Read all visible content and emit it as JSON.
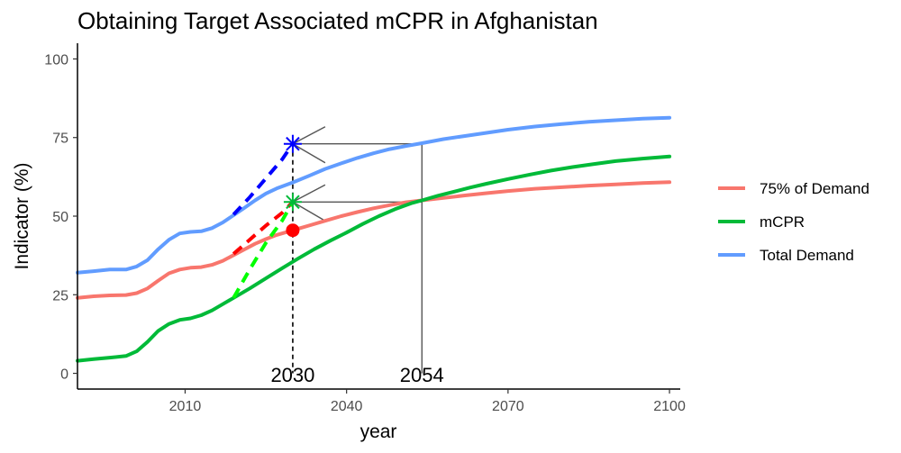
{
  "chart_data": {
    "type": "line",
    "title": "Obtaining Target Associated mCPR in Afghanistan",
    "xlabel": "year",
    "ylabel": "Indicator (%)",
    "xlim": [
      1990,
      2102
    ],
    "ylim": [
      -5,
      105
    ],
    "xticks": [
      2010,
      2040,
      2070,
      2100
    ],
    "yticks": [
      0,
      25,
      50,
      75,
      100
    ],
    "grid": false,
    "legend_position": "right",
    "series": [
      {
        "name": "75% of Demand",
        "color": "#F8766D",
        "points": [
          [
            1990,
            24
          ],
          [
            1993,
            24.5
          ],
          [
            1996,
            24.8
          ],
          [
            1999,
            24.9
          ],
          [
            2001,
            25.5
          ],
          [
            2003,
            27
          ],
          [
            2005,
            29.5
          ],
          [
            2007,
            31.8
          ],
          [
            2009,
            33
          ],
          [
            2011,
            33.6
          ],
          [
            2013,
            33.8
          ],
          [
            2015,
            34.5
          ],
          [
            2017,
            35.8
          ],
          [
            2019,
            37.6
          ],
          [
            2021,
            39.4
          ],
          [
            2023,
            41.2
          ],
          [
            2025,
            42.7
          ],
          [
            2027,
            44
          ],
          [
            2030,
            45.5
          ],
          [
            2033,
            47
          ],
          [
            2036,
            48.5
          ],
          [
            2039,
            50
          ],
          [
            2042,
            51.3
          ],
          [
            2045,
            52.5
          ],
          [
            2048,
            53.5
          ],
          [
            2051,
            54.4
          ],
          [
            2054,
            55
          ],
          [
            2058,
            55.8
          ],
          [
            2062,
            56.6
          ],
          [
            2066,
            57.3
          ],
          [
            2070,
            58
          ],
          [
            2075,
            58.7
          ],
          [
            2080,
            59.2
          ],
          [
            2085,
            59.7
          ],
          [
            2090,
            60.1
          ],
          [
            2095,
            60.5
          ],
          [
            2100,
            60.8
          ]
        ]
      },
      {
        "name": "mCPR",
        "color": "#00BA38",
        "points": [
          [
            1990,
            4
          ],
          [
            1993,
            4.5
          ],
          [
            1996,
            5
          ],
          [
            1999,
            5.5
          ],
          [
            2001,
            7
          ],
          [
            2003,
            10
          ],
          [
            2005,
            13.5
          ],
          [
            2007,
            15.7
          ],
          [
            2009,
            17
          ],
          [
            2011,
            17.5
          ],
          [
            2013,
            18.5
          ],
          [
            2015,
            20
          ],
          [
            2017,
            22
          ],
          [
            2019,
            24
          ],
          [
            2022,
            27
          ],
          [
            2025,
            30.2
          ],
          [
            2028,
            33.4
          ],
          [
            2031,
            36.5
          ],
          [
            2034,
            39.5
          ],
          [
            2037,
            42.2
          ],
          [
            2040,
            44.8
          ],
          [
            2043,
            47.5
          ],
          [
            2046,
            50
          ],
          [
            2049,
            52.2
          ],
          [
            2052,
            54.1
          ],
          [
            2054,
            55
          ],
          [
            2057,
            56.5
          ],
          [
            2060,
            57.8
          ],
          [
            2063,
            59.1
          ],
          [
            2066,
            60.3
          ],
          [
            2070,
            61.8
          ],
          [
            2074,
            63.2
          ],
          [
            2078,
            64.5
          ],
          [
            2082,
            65.6
          ],
          [
            2086,
            66.6
          ],
          [
            2090,
            67.5
          ],
          [
            2095,
            68.3
          ],
          [
            2100,
            69
          ]
        ]
      },
      {
        "name": "Total Demand",
        "color": "#619CFF",
        "points": [
          [
            1990,
            32
          ],
          [
            1993,
            32.5
          ],
          [
            1996,
            33
          ],
          [
            1999,
            33
          ],
          [
            2001,
            34
          ],
          [
            2003,
            36
          ],
          [
            2005,
            39.5
          ],
          [
            2007,
            42.5
          ],
          [
            2009,
            44.5
          ],
          [
            2011,
            45
          ],
          [
            2013,
            45.2
          ],
          [
            2015,
            46.2
          ],
          [
            2017,
            48
          ],
          [
            2019,
            50.3
          ],
          [
            2021,
            52.6
          ],
          [
            2023,
            55
          ],
          [
            2025,
            57.2
          ],
          [
            2027,
            58.8
          ],
          [
            2030,
            60.7
          ],
          [
            2033,
            62.8
          ],
          [
            2036,
            65
          ],
          [
            2039,
            66.8
          ],
          [
            2042,
            68.5
          ],
          [
            2045,
            70
          ],
          [
            2048,
            71.3
          ],
          [
            2051,
            72.3
          ],
          [
            2054,
            73.2
          ],
          [
            2058,
            74.5
          ],
          [
            2062,
            75.5
          ],
          [
            2066,
            76.5
          ],
          [
            2070,
            77.5
          ],
          [
            2075,
            78.5
          ],
          [
            2080,
            79.3
          ],
          [
            2085,
            80
          ],
          [
            2090,
            80.5
          ],
          [
            2095,
            81
          ],
          [
            2100,
            81.3
          ]
        ]
      }
    ],
    "projections": [
      {
        "color": "#0000FF",
        "points": [
          [
            2019,
            50.5
          ],
          [
            2022,
            56
          ],
          [
            2025,
            62
          ],
          [
            2028,
            68
          ],
          [
            2030,
            73
          ]
        ]
      },
      {
        "color": "#FF0000",
        "points": [
          [
            2019,
            38
          ],
          [
            2022,
            42.5
          ],
          [
            2025,
            47
          ],
          [
            2028,
            51
          ],
          [
            2030,
            54.5
          ]
        ]
      },
      {
        "color": "#00FF00",
        "points": [
          [
            2019,
            24
          ],
          [
            2022,
            33
          ],
          [
            2025,
            41.5
          ],
          [
            2028,
            48.5
          ],
          [
            2030,
            54.5
          ]
        ]
      }
    ],
    "markers": {
      "blue_star": {
        "x": 2030,
        "y": 73,
        "color": "#0000FF"
      },
      "green_star": {
        "x": 2030,
        "y": 54.5,
        "color": "#00BA38"
      },
      "red_dot": {
        "x": 2030,
        "y": 45.5,
        "color": "#FF0000"
      }
    },
    "guides": {
      "target_year": 2030,
      "crossing_year": 2054,
      "target_level_total": 73,
      "target_level_mcpr": 54.5
    },
    "annotations": [
      "2030",
      "2054"
    ]
  }
}
